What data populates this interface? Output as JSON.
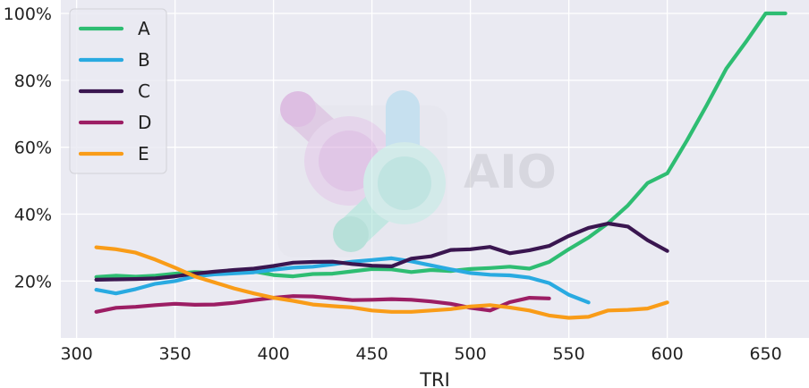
{
  "chart_data": {
    "type": "line",
    "title": "",
    "xlabel": "TRI",
    "ylabel": "",
    "xlim": [
      292,
      672
    ],
    "ylim": [
      3,
      104
    ],
    "x_ticks": [
      300,
      350,
      400,
      450,
      500,
      550,
      600,
      650
    ],
    "y_ticks": [
      20,
      40,
      60,
      80,
      100
    ],
    "y_tick_format": "%",
    "grid": true,
    "legend_position": "top-left",
    "watermark": "AIO",
    "series": [
      {
        "name": "A",
        "color": "#2ebd72",
        "x": [
          310,
          320,
          330,
          340,
          350,
          360,
          370,
          380,
          390,
          400,
          410,
          420,
          430,
          440,
          450,
          460,
          470,
          480,
          490,
          500,
          510,
          520,
          530,
          540,
          550,
          560,
          570,
          580,
          590,
          600,
          610,
          620,
          630,
          640,
          650,
          660
        ],
        "y": [
          21.2,
          21.6,
          21.3,
          21.6,
          22.2,
          22.7,
          22.4,
          22.8,
          22.9,
          21.8,
          21.4,
          22.1,
          22.2,
          22.9,
          23.6,
          23.5,
          22.7,
          23.3,
          23.0,
          23.6,
          23.9,
          24.3,
          23.7,
          25.7,
          29.5,
          33.0,
          37.3,
          42.6,
          49.3,
          52.2,
          62.0,
          72.5,
          83.5,
          91.5,
          100.0,
          100.0
        ]
      },
      {
        "name": "B",
        "color": "#29aae1",
        "x": [
          310,
          320,
          330,
          340,
          350,
          360,
          370,
          380,
          390,
          400,
          410,
          420,
          430,
          440,
          450,
          460,
          470,
          480,
          490,
          500,
          510,
          520,
          530,
          540,
          550,
          560
        ],
        "y": [
          17.4,
          16.3,
          17.6,
          19.2,
          20.0,
          21.4,
          22.0,
          22.3,
          22.6,
          23.4,
          24.0,
          24.3,
          25.0,
          25.8,
          26.3,
          26.8,
          25.9,
          24.7,
          23.5,
          22.4,
          21.9,
          21.7,
          21.0,
          19.4,
          15.9,
          13.6
        ]
      },
      {
        "name": "C",
        "color": "#3a1650",
        "x": [
          310,
          320,
          330,
          340,
          350,
          360,
          370,
          380,
          390,
          400,
          410,
          420,
          430,
          440,
          450,
          460,
          470,
          480,
          490,
          500,
          510,
          520,
          530,
          540,
          550,
          560,
          570,
          580,
          590,
          600
        ],
        "y": [
          20.4,
          20.5,
          20.6,
          20.8,
          21.4,
          22.2,
          22.8,
          23.3,
          23.7,
          24.5,
          25.5,
          25.7,
          25.8,
          25.1,
          24.6,
          24.4,
          26.7,
          27.4,
          29.3,
          29.5,
          30.2,
          28.3,
          29.2,
          30.5,
          33.5,
          35.9,
          37.2,
          36.3,
          32.2,
          29.0
        ]
      },
      {
        "name": "D",
        "color": "#9c1e64",
        "x": [
          310,
          320,
          330,
          340,
          350,
          360,
          370,
          380,
          390,
          400,
          410,
          420,
          430,
          440,
          450,
          460,
          470,
          480,
          490,
          500,
          510,
          520,
          530,
          540
        ],
        "y": [
          10.8,
          12.0,
          12.3,
          12.8,
          13.2,
          12.9,
          13.0,
          13.5,
          14.3,
          15.0,
          15.5,
          15.4,
          14.9,
          14.3,
          14.4,
          14.6,
          14.4,
          13.9,
          13.2,
          12.0,
          11.2,
          13.7,
          15.0,
          14.8
        ]
      },
      {
        "name": "E",
        "color": "#f99c18",
        "x": [
          310,
          320,
          330,
          340,
          350,
          360,
          370,
          380,
          390,
          400,
          410,
          420,
          430,
          440,
          450,
          460,
          470,
          480,
          490,
          500,
          510,
          520,
          530,
          540,
          550,
          560,
          570,
          580,
          590,
          600
        ],
        "y": [
          30.1,
          29.5,
          28.5,
          26.4,
          24.0,
          21.4,
          19.6,
          17.8,
          16.3,
          15.0,
          14.1,
          13.0,
          12.5,
          12.1,
          11.2,
          10.8,
          10.8,
          11.2,
          11.6,
          12.4,
          12.8,
          12.1,
          11.2,
          9.7,
          9.0,
          9.3,
          11.2,
          11.4,
          11.8,
          13.6
        ]
      }
    ]
  }
}
